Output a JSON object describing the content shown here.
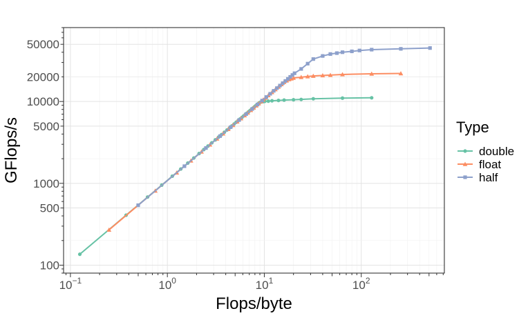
{
  "chart_data": {
    "type": "line",
    "xlabel": "Flops/byte",
    "ylabel": "GFlops/s",
    "x_scale": "log10",
    "y_scale": "log10",
    "xlim": [
      0.085,
      720
    ],
    "ylim": [
      80,
      80000
    ],
    "x_ticks": [
      {
        "value": 0.1,
        "base": "10",
        "exp": "−1"
      },
      {
        "value": 1,
        "base": "10",
        "exp": "0"
      },
      {
        "value": 10,
        "base": "10",
        "exp": "1"
      },
      {
        "value": 100,
        "base": "10",
        "exp": "2"
      }
    ],
    "y_ticks": [
      {
        "value": 100,
        "label": "100"
      },
      {
        "value": 500,
        "label": "500"
      },
      {
        "value": 1000,
        "label": "1000"
      },
      {
        "value": 5000,
        "label": "5000"
      },
      {
        "value": 10000,
        "label": "10000"
      },
      {
        "value": 20000,
        "label": "20000"
      },
      {
        "value": 50000,
        "label": "50000"
      }
    ],
    "grid": true,
    "legend": {
      "title": "Type",
      "position": "right"
    },
    "series": [
      {
        "name": "double",
        "color": "#66c2a5",
        "marker": "circle",
        "x": [
          0.125,
          0.375,
          0.625,
          0.875,
          1.125,
          1.375,
          1.625,
          1.875,
          2.125,
          2.375,
          2.625,
          2.875,
          3.125,
          3.375,
          3.625,
          3.875,
          4.125,
          4.375,
          4.625,
          4.875,
          5.125,
          5.375,
          5.625,
          5.875,
          6.125,
          6.375,
          6.625,
          6.875,
          7.125,
          7.375,
          7.625,
          7.875,
          8.125,
          8.375,
          8.625,
          8.875,
          9.125,
          9.375,
          9.625,
          9.875,
          10.125,
          11,
          12,
          14,
          16,
          20,
          24,
          32,
          64,
          128
        ],
        "y": [
          136,
          408,
          680,
          952,
          1224,
          1496,
          1768,
          2040,
          2312,
          2584,
          2856,
          3128,
          3400,
          3672,
          3944,
          4216,
          4488,
          4760,
          5032,
          5304,
          5576,
          5848,
          6120,
          6392,
          6664,
          6936,
          7208,
          7480,
          7752,
          8024,
          8296,
          8568,
          8840,
          9112,
          9384,
          9656,
          9800,
          9900,
          9950,
          10000,
          10050,
          10100,
          10200,
          10300,
          10400,
          10500,
          10600,
          10800,
          11000,
          11100
        ]
      },
      {
        "name": "float",
        "color": "#fc8d62",
        "marker": "triangle",
        "x": [
          0.25,
          0.75,
          1.25,
          1.75,
          2.25,
          2.75,
          3.25,
          3.75,
          4.25,
          4.75,
          5.25,
          5.75,
          6.25,
          6.75,
          7.25,
          7.75,
          8.25,
          8.75,
          9.25,
          9.75,
          10.25,
          11,
          12,
          13,
          14,
          15,
          16,
          17,
          18,
          19,
          20,
          24,
          28,
          32,
          40,
          48,
          64,
          128,
          256
        ],
        "y": [
          270,
          810,
          1350,
          1890,
          2430,
          2970,
          3510,
          4050,
          4590,
          5130,
          5670,
          6210,
          6750,
          7290,
          7830,
          8370,
          8910,
          9450,
          9990,
          10530,
          11070,
          11880,
          12960,
          14040,
          15120,
          16200,
          17280,
          18000,
          18600,
          19000,
          19400,
          19800,
          20200,
          20500,
          20800,
          21000,
          21400,
          21800,
          22000
        ]
      },
      {
        "name": "half",
        "color": "#8da0cb",
        "marker": "square",
        "x": [
          0.5,
          1.5,
          2.5,
          3.5,
          4.5,
          5.5,
          6.5,
          7.5,
          8.5,
          9.5,
          10.5,
          11.5,
          12.5,
          13.5,
          14.5,
          15.5,
          16.5,
          17.5,
          18.5,
          19.5,
          20.5,
          24,
          28,
          32,
          40,
          48,
          56,
          64,
          80,
          96,
          128,
          256,
          512
        ],
        "y": [
          540,
          1620,
          2700,
          3780,
          4860,
          5940,
          7020,
          8100,
          9180,
          10260,
          11340,
          12420,
          13500,
          14580,
          15660,
          16740,
          17820,
          18900,
          19980,
          21060,
          22140,
          25000,
          29000,
          33000,
          36000,
          38000,
          39000,
          40000,
          41000,
          42000,
          43000,
          44000,
          45000
        ]
      }
    ]
  }
}
